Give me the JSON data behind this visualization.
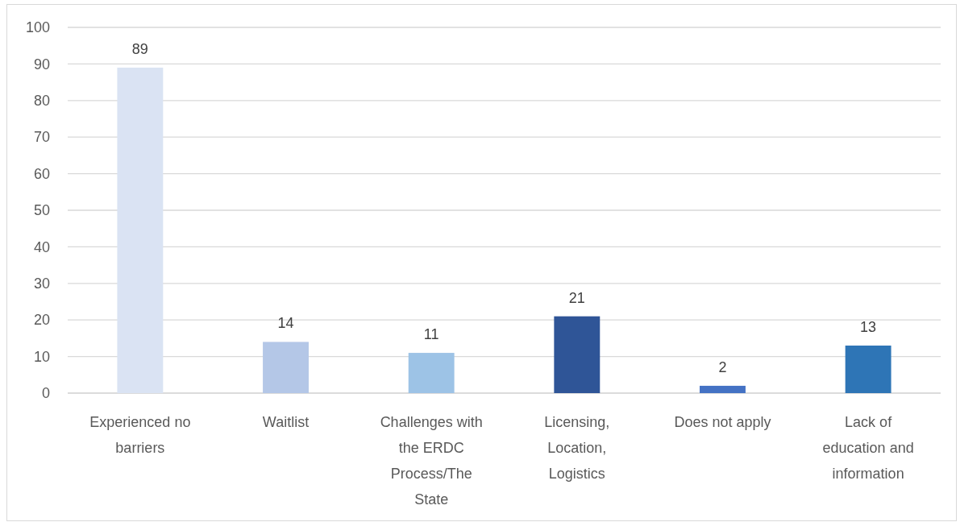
{
  "chart_data": {
    "type": "bar",
    "categories": [
      "Experienced no barriers",
      "Waitlist",
      "Challenges with the ERDC Process/The State",
      "Licensing, Location, Logistics",
      "Does not apply",
      "Lack of education and information"
    ],
    "values": [
      89,
      14,
      11,
      21,
      2,
      13
    ],
    "colors": [
      "#dae3f3",
      "#b4c7e7",
      "#9dc3e6",
      "#2f5597",
      "#4472c4",
      "#2e75b6"
    ],
    "ylim": [
      0,
      100
    ],
    "yticks": [
      0,
      10,
      20,
      30,
      40,
      50,
      60,
      70,
      80,
      90,
      100
    ],
    "grid": "y",
    "data_labels": true
  }
}
